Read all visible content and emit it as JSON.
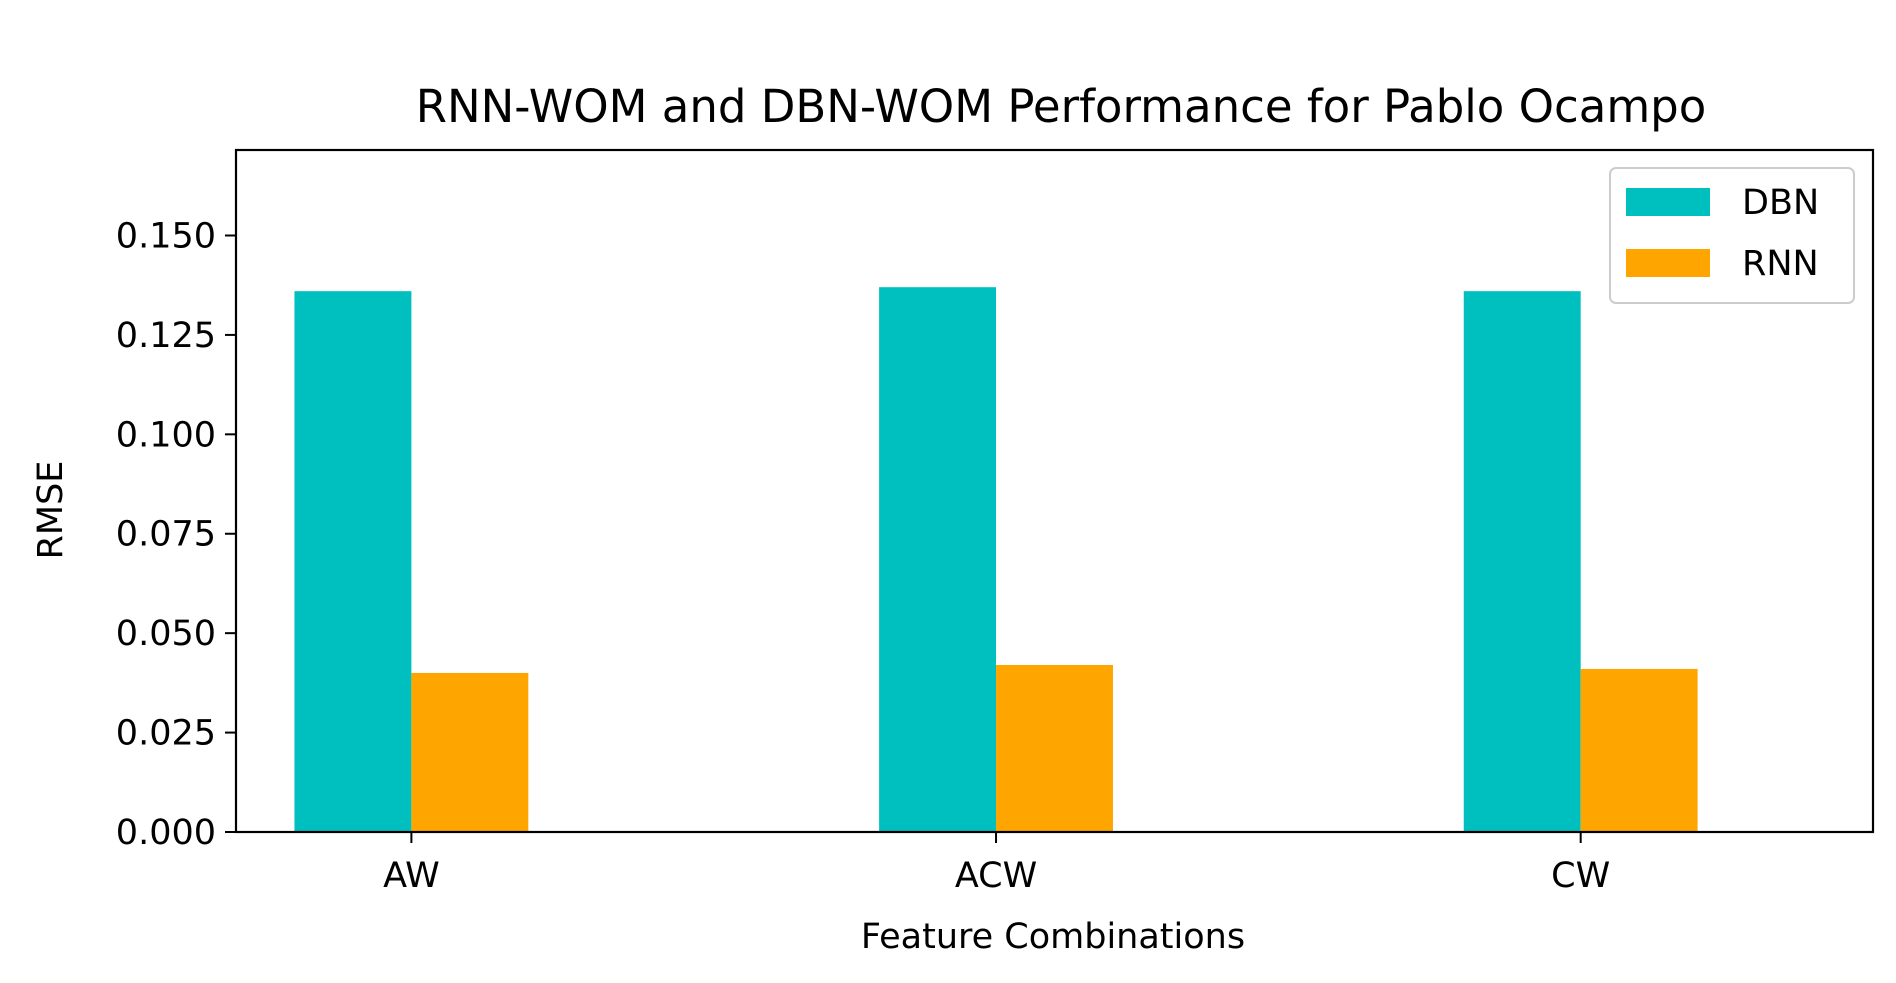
{
  "chart_data": {
    "type": "bar",
    "title": "RNN-WOM and DBN-WOM Performance for Pablo Ocampo",
    "xlabel": "Feature Combinations",
    "ylabel": "RMSE",
    "categories": [
      "AW",
      "ACW",
      "CW"
    ],
    "series": [
      {
        "name": "DBN",
        "color": "#00BFBF",
        "values": [
          0.136,
          0.137,
          0.136
        ]
      },
      {
        "name": "RNN",
        "color": "#FFA500",
        "values": [
          0.04,
          0.042,
          0.041
        ]
      }
    ],
    "ylim": [
      0,
      0.1715
    ],
    "yticks": [
      0.0,
      0.025,
      0.05,
      0.075,
      0.1,
      0.125,
      0.15
    ],
    "ytick_labels": [
      "0.000",
      "0.025",
      "0.050",
      "0.075",
      "0.100",
      "0.125",
      "0.150"
    ],
    "legend_position": "top-right",
    "grid": false
  }
}
